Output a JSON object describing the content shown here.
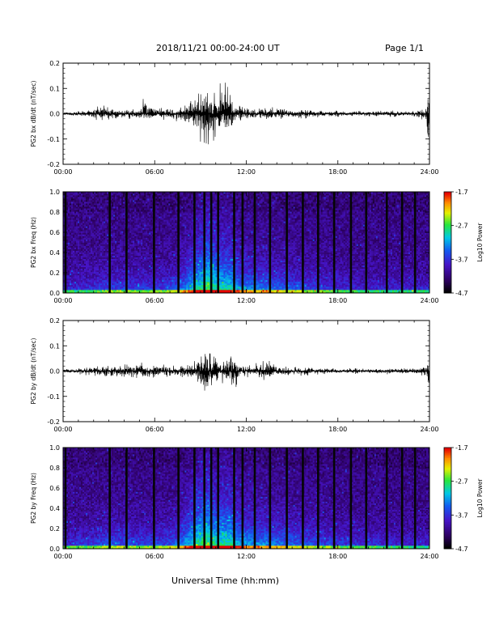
{
  "header": {
    "title": "2018/11/21  00:00-24:00 UT",
    "page": "Page 1/1"
  },
  "xaxis_label": "Universal Time (hh:mm)",
  "chart_data": [
    {
      "type": "line",
      "ylabel": "PG2 bx dB/dt (nT/sec)",
      "xlim": [
        0,
        24
      ],
      "ylim": [
        -0.2,
        0.2
      ],
      "xticks": [
        "00:00",
        "06:00",
        "12:00",
        "18:00",
        "24:00"
      ],
      "yticks": [
        "-0.2",
        "-0.1",
        "0.0",
        "0.1",
        "0.2"
      ],
      "envelope": {
        "x": [
          0,
          1,
          2,
          2.5,
          3,
          4,
          5,
          5.3,
          6,
          7,
          8,
          8.5,
          8.8,
          9,
          9.3,
          9.6,
          10,
          10.5,
          11,
          11.3,
          11.6,
          12,
          13,
          14,
          15,
          16,
          17,
          18,
          19,
          20,
          21,
          22,
          23,
          23.8,
          23.95
        ],
        "upper": [
          0.005,
          0.01,
          0.015,
          0.04,
          0.02,
          0.015,
          0.02,
          0.06,
          0.02,
          0.02,
          0.03,
          0.05,
          0.07,
          0.09,
          0.13,
          0.11,
          0.09,
          0.12,
          0.08,
          0.02,
          0.04,
          0.02,
          0.02,
          0.02,
          0.015,
          0.015,
          0.01,
          0.01,
          0.01,
          0.01,
          0.01,
          0.01,
          0.01,
          0.02,
          0.09
        ],
        "lower": [
          -0.005,
          -0.01,
          -0.015,
          -0.03,
          -0.02,
          -0.015,
          -0.02,
          -0.02,
          -0.02,
          -0.02,
          -0.03,
          -0.05,
          -0.07,
          -0.11,
          -0.16,
          -0.1,
          -0.09,
          -0.08,
          -0.08,
          -0.06,
          -0.04,
          -0.02,
          -0.02,
          -0.02,
          -0.015,
          -0.015,
          -0.01,
          -0.01,
          -0.01,
          -0.01,
          -0.01,
          -0.01,
          -0.01,
          -0.03,
          -0.13
        ]
      }
    },
    {
      "type": "heatmap",
      "ylabel": "PG2 bx Freq (Hz)",
      "xlim": [
        0,
        24
      ],
      "ylim": [
        0,
        1
      ],
      "xticks": [
        "00:00",
        "06:00",
        "12:00",
        "18:00",
        "24:00"
      ],
      "yticks": [
        "0.0",
        "0.2",
        "0.4",
        "0.6",
        "0.8",
        "1.0"
      ],
      "colorbar": {
        "label": "Log10 Power",
        "range": [
          -4.7,
          -1.7
        ],
        "ticks": [
          "-1.7",
          "-2.7",
          "-3.7",
          "-4.7"
        ]
      },
      "activity": {
        "x": [
          0,
          2,
          3,
          5,
          6.5,
          7.5,
          8.5,
          9,
          9.5,
          10,
          10.5,
          11,
          11.5,
          12,
          13,
          14,
          16,
          18,
          20,
          22,
          24
        ],
        "level": [
          0.3,
          0.35,
          0.45,
          0.4,
          0.4,
          0.5,
          0.8,
          0.9,
          1.0,
          0.9,
          0.85,
          0.85,
          0.7,
          0.65,
          0.6,
          0.55,
          0.45,
          0.35,
          0.3,
          0.3,
          0.3
        ]
      },
      "gaps_hours": [
        0.15,
        3.05,
        4.15,
        5.95,
        7.55,
        8.6,
        9.25,
        9.7,
        10.15,
        11.2,
        11.75,
        12.55,
        13.55,
        14.65,
        15.7,
        16.7,
        17.75,
        18.85,
        19.85,
        21.2,
        22.2,
        23.05
      ]
    },
    {
      "type": "line",
      "ylabel": "PG2 by dB/dt (nT/sec)",
      "xlim": [
        0,
        24
      ],
      "ylim": [
        -0.2,
        0.2
      ],
      "xticks": [
        "00:00",
        "06:00",
        "12:00",
        "18:00",
        "24:00"
      ],
      "yticks": [
        "-0.2",
        "-0.1",
        "0.0",
        "0.1",
        "0.2"
      ],
      "envelope": {
        "x": [
          0,
          1,
          2,
          3,
          4,
          5,
          6,
          7,
          8,
          8.5,
          9,
          9.3,
          9.6,
          10,
          10.5,
          11,
          11.3,
          11.6,
          12,
          13,
          13.5,
          14,
          15,
          16,
          17,
          18,
          19,
          20,
          21,
          22,
          23,
          23.8,
          23.95
        ],
        "upper": [
          0.005,
          0.01,
          0.02,
          0.02,
          0.025,
          0.03,
          0.025,
          0.02,
          0.025,
          0.04,
          0.07,
          0.11,
          0.09,
          0.06,
          0.05,
          0.08,
          0.06,
          0.02,
          0.02,
          0.03,
          0.04,
          0.02,
          0.015,
          0.015,
          0.01,
          0.01,
          0.01,
          0.01,
          0.01,
          0.01,
          0.01,
          0.02,
          0.05
        ],
        "lower": [
          -0.005,
          -0.01,
          -0.02,
          -0.02,
          -0.025,
          -0.03,
          -0.025,
          -0.02,
          -0.025,
          -0.04,
          -0.07,
          -0.1,
          -0.08,
          -0.05,
          -0.04,
          -0.07,
          -0.08,
          -0.02,
          -0.02,
          -0.03,
          -0.03,
          -0.02,
          -0.015,
          -0.015,
          -0.01,
          -0.01,
          -0.01,
          -0.01,
          -0.01,
          -0.01,
          -0.01,
          -0.02,
          -0.07
        ]
      }
    },
    {
      "type": "heatmap",
      "ylabel": "PG2 by Freq (Hz)",
      "xlim": [
        0,
        24
      ],
      "ylim": [
        0,
        1
      ],
      "xticks": [
        "00:00",
        "06:00",
        "12:00",
        "18:00",
        "24:00"
      ],
      "yticks": [
        "0.0",
        "0.2",
        "0.4",
        "0.6",
        "0.8",
        "1.0"
      ],
      "colorbar": {
        "label": "Log10 Power",
        "range": [
          -4.7,
          -1.7
        ],
        "ticks": [
          "-1.7",
          "-2.7",
          "-3.7",
          "-4.7"
        ]
      },
      "activity": {
        "x": [
          0,
          2,
          3,
          5,
          6.5,
          7.5,
          8.5,
          9,
          9.5,
          10,
          10.5,
          11,
          11.5,
          12,
          13,
          14,
          16,
          18,
          20,
          22,
          24
        ],
        "level": [
          0.35,
          0.4,
          0.5,
          0.45,
          0.45,
          0.55,
          0.85,
          0.95,
          1.0,
          0.9,
          0.9,
          0.9,
          0.75,
          0.7,
          0.65,
          0.6,
          0.5,
          0.4,
          0.35,
          0.3,
          0.3
        ]
      },
      "gaps_hours": [
        0.15,
        3.05,
        4.15,
        5.95,
        7.55,
        8.6,
        9.25,
        9.7,
        10.15,
        11.2,
        11.75,
        12.55,
        13.55,
        14.65,
        15.7,
        16.7,
        17.75,
        18.85,
        19.85,
        21.2,
        22.2,
        23.05
      ]
    }
  ]
}
